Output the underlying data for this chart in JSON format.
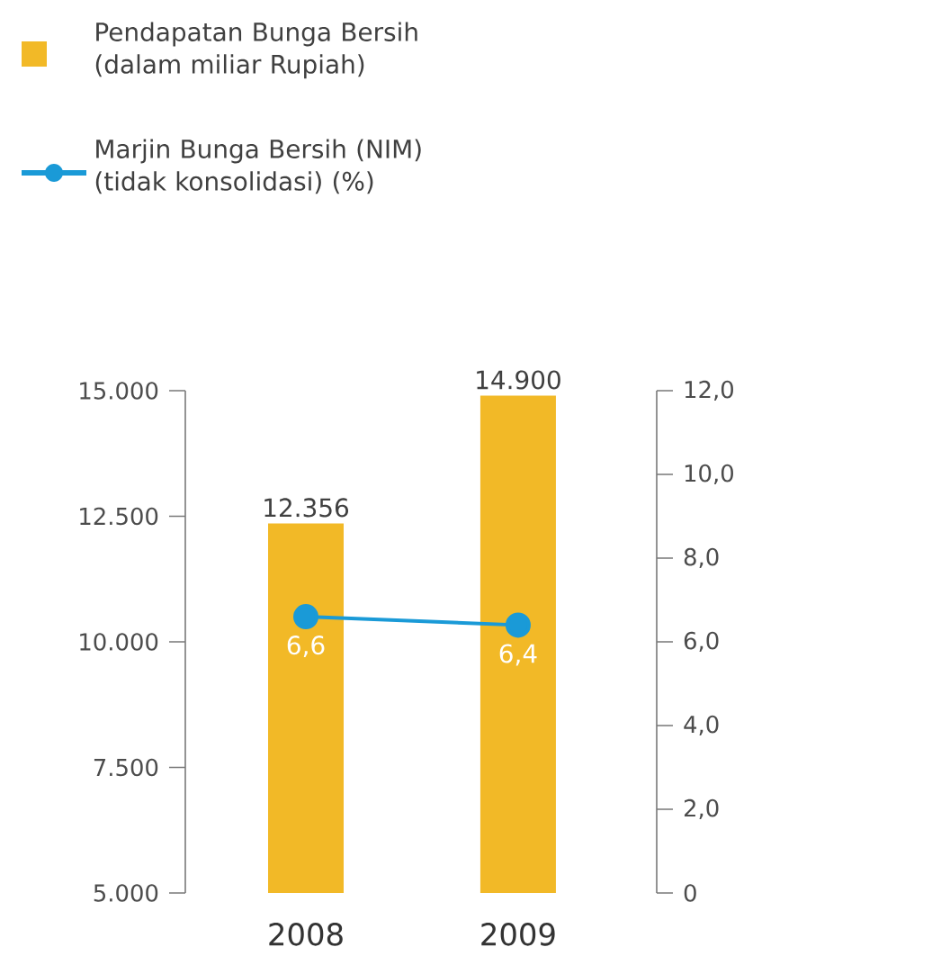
{
  "chart_data": {
    "type": "bar",
    "categories": [
      "2008",
      "2009"
    ],
    "series": [
      {
        "name": "Pendapatan Bunga Bersih (dalam miliar Rupiah)",
        "color": "#f2b927",
        "values": [
          12356,
          14900
        ],
        "value_labels": [
          "12.356",
          "14.900"
        ]
      },
      {
        "name": "Marjin Bunga Bersih (NIM) (tidak konsolidasi) (%)",
        "type": "line",
        "axis": "y2",
        "color": "#1a9ad7",
        "marker": "circle",
        "line_style": "solid",
        "values": [
          6.6,
          6.4
        ],
        "value_labels": [
          "6,6",
          "6,4"
        ]
      }
    ],
    "ylim": [
      5000,
      15000
    ],
    "yticks": [
      {
        "value": 5000,
        "label": "5.000"
      },
      {
        "value": 7500,
        "label": "7.500"
      },
      {
        "value": 10000,
        "label": "10.000"
      },
      {
        "value": 12500,
        "label": "12.500"
      },
      {
        "value": 15000,
        "label": "15.000"
      }
    ],
    "y2lim": [
      0,
      12
    ],
    "y2ticks": [
      0,
      {
        "value": 2,
        "label": "2,0"
      },
      {
        "value": 4,
        "label": "4,0"
      },
      {
        "value": 6,
        "label": "6,0"
      },
      {
        "value": 8,
        "label": "8,0"
      },
      {
        "value": 10,
        "label": "10,0"
      },
      {
        "value": 12,
        "label": "12,0"
      }
    ],
    "legend": "top left",
    "grid": false
  }
}
